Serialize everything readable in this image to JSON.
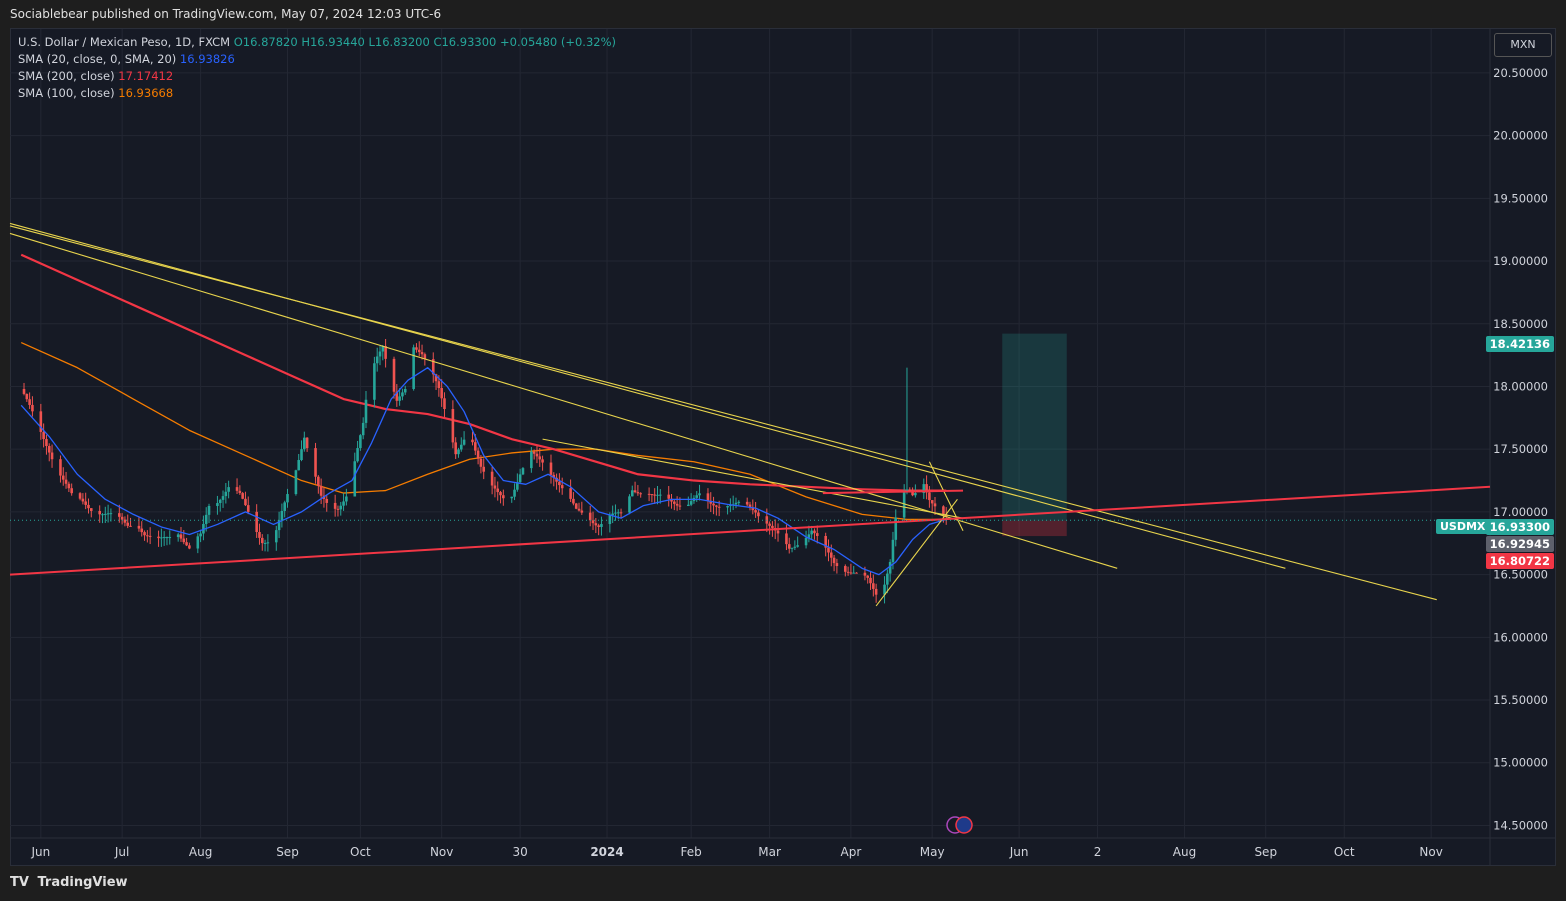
{
  "header": {
    "publisher": "Sociablebear published on TradingView.com, May 07, 2024 12:03 UTC-6"
  },
  "legend": {
    "symbol": "U.S. Dollar / Mexican Peso, 1D, FXCM",
    "open": "O16.87820",
    "high": "H16.93440",
    "low": "L16.83200",
    "close": "C16.93300",
    "change": "+0.05480 (+0.32%)",
    "sma20_label": "SMA (20, close, 0, SMA, 20)",
    "sma20_value": "16.93826",
    "sma200_label": "SMA (200, close)",
    "sma200_value": "17.17412",
    "sma100_label": "SMA (100, close)",
    "sma100_value": "16.93668"
  },
  "currency_badge": "MXN",
  "symbol_badge": "USDMXN",
  "price_labels": {
    "target": "18.42136",
    "last": "16.93300",
    "sma": "16.92945",
    "stop": "16.80722"
  },
  "footer": {
    "brand": "TradingView",
    "logo": "TV"
  },
  "colors": {
    "up": "#26a69a",
    "down": "#ef5350",
    "sma20": "#2962ff",
    "sma200": "#f23645",
    "sma100": "#f57c00",
    "trend": "#e8d44d",
    "support": "#f23645"
  },
  "chart_data": {
    "type": "candlestick",
    "title": "U.S. Dollar / Mexican Peso, 1D, FXCM",
    "ylim": [
      14.4,
      20.85
    ],
    "y_ticks": [
      "20.50000",
      "20.00000",
      "19.50000",
      "19.00000",
      "18.50000",
      "18.00000",
      "17.50000",
      "17.00000",
      "16.50000",
      "16.00000",
      "15.50000",
      "15.00000",
      "14.50000"
    ],
    "x_ticks": [
      "Jun",
      "Jul",
      "Aug",
      "Sep",
      "Oct",
      "Nov",
      "30",
      "2024",
      "Feb",
      "Mar",
      "Apr",
      "May",
      "Jun",
      "2",
      "Aug",
      "Sep",
      "Oct",
      "Nov"
    ],
    "x_tick_days": [
      7,
      36,
      64,
      95,
      121,
      150,
      178,
      209,
      239,
      267,
      296,
      325,
      356,
      384,
      415,
      444,
      472,
      503
    ],
    "x_range_days": [
      -4,
      524
    ],
    "price_path": [
      [
        0,
        17.98
      ],
      [
        5,
        17.72
      ],
      [
        10,
        17.5
      ],
      [
        14,
        17.3
      ],
      [
        18,
        17.12
      ],
      [
        22,
        17.08
      ],
      [
        26,
        17.02
      ],
      [
        30,
        16.98
      ],
      [
        34,
        16.95
      ],
      [
        38,
        16.9
      ],
      [
        41,
        16.93
      ],
      [
        44,
        16.82
      ],
      [
        48,
        16.75
      ],
      [
        52,
        16.8
      ],
      [
        56,
        16.85
      ],
      [
        60,
        16.7
      ],
      [
        64,
        16.8
      ],
      [
        67,
        17.05
      ],
      [
        70,
        17.1
      ],
      [
        74,
        17.2
      ],
      [
        78,
        17.12
      ],
      [
        82,
        16.95
      ],
      [
        86,
        16.78
      ],
      [
        90,
        16.76
      ],
      [
        94,
        17.05
      ],
      [
        98,
        17.35
      ],
      [
        101,
        17.62
      ],
      [
        104,
        17.35
      ],
      [
        107,
        17.1
      ],
      [
        110,
        17.02
      ],
      [
        113,
        17.04
      ],
      [
        116,
        17.15
      ],
      [
        119,
        17.4
      ],
      [
        122,
        17.68
      ],
      [
        124,
        18.05
      ],
      [
        127,
        18.25
      ],
      [
        129,
        18.35
      ],
      [
        132,
        18.05
      ],
      [
        134,
        17.88
      ],
      [
        137,
        17.95
      ],
      [
        140,
        18.3
      ],
      [
        143,
        18.28
      ],
      [
        146,
        18.18
      ],
      [
        149,
        17.98
      ],
      [
        152,
        17.7
      ],
      [
        155,
        17.45
      ],
      [
        158,
        17.6
      ],
      [
        161,
        17.58
      ],
      [
        164,
        17.35
      ],
      [
        167,
        17.2
      ],
      [
        170,
        17.15
      ],
      [
        174,
        17.1
      ],
      [
        178,
        17.3
      ],
      [
        182,
        17.45
      ],
      [
        186,
        17.4
      ],
      [
        190,
        17.3
      ],
      [
        194,
        17.15
      ],
      [
        198,
        17.0
      ],
      [
        202,
        16.98
      ],
      [
        206,
        16.9
      ],
      [
        210,
        16.95
      ],
      [
        214,
        16.98
      ],
      [
        218,
        17.2
      ],
      [
        222,
        17.15
      ],
      [
        226,
        17.1
      ],
      [
        230,
        17.13
      ],
      [
        234,
        17.08
      ],
      [
        238,
        17.05
      ],
      [
        242,
        17.12
      ],
      [
        246,
        17.08
      ],
      [
        250,
        17.06
      ],
      [
        254,
        17.04
      ],
      [
        258,
        17.06
      ],
      [
        262,
        17.02
      ],
      [
        266,
        16.92
      ],
      [
        270,
        16.8
      ],
      [
        274,
        16.7
      ],
      [
        278,
        16.78
      ],
      [
        282,
        16.85
      ],
      [
        286,
        16.72
      ],
      [
        290,
        16.6
      ],
      [
        294,
        16.55
      ],
      [
        298,
        16.5
      ],
      [
        302,
        16.45
      ],
      [
        305,
        16.35
      ],
      [
        308,
        16.45
      ],
      [
        310,
        16.62
      ],
      [
        312,
        16.95
      ],
      [
        314,
        17.1
      ],
      [
        316,
        17.15
      ],
      [
        318,
        17.12
      ],
      [
        320,
        17.18
      ],
      [
        322,
        17.25
      ],
      [
        324,
        17.12
      ],
      [
        326,
        17.05
      ],
      [
        328,
        16.98
      ],
      [
        330,
        16.93
      ]
    ],
    "spike": {
      "day": 316,
      "high": 18.15
    },
    "sma20": [
      [
        0,
        17.85
      ],
      [
        10,
        17.6
      ],
      [
        20,
        17.3
      ],
      [
        30,
        17.1
      ],
      [
        40,
        16.98
      ],
      [
        50,
        16.88
      ],
      [
        60,
        16.82
      ],
      [
        70,
        16.9
      ],
      [
        80,
        17.0
      ],
      [
        90,
        16.9
      ],
      [
        100,
        17.0
      ],
      [
        110,
        17.15
      ],
      [
        118,
        17.25
      ],
      [
        125,
        17.55
      ],
      [
        132,
        17.9
      ],
      [
        138,
        18.05
      ],
      [
        145,
        18.15
      ],
      [
        152,
        18.0
      ],
      [
        158,
        17.8
      ],
      [
        165,
        17.45
      ],
      [
        172,
        17.25
      ],
      [
        180,
        17.22
      ],
      [
        188,
        17.3
      ],
      [
        196,
        17.2
      ],
      [
        206,
        17.0
      ],
      [
        214,
        16.95
      ],
      [
        222,
        17.05
      ],
      [
        232,
        17.1
      ],
      [
        242,
        17.1
      ],
      [
        252,
        17.06
      ],
      [
        262,
        17.03
      ],
      [
        270,
        16.95
      ],
      [
        280,
        16.8
      ],
      [
        290,
        16.7
      ],
      [
        300,
        16.55
      ],
      [
        306,
        16.5
      ],
      [
        312,
        16.6
      ],
      [
        318,
        16.78
      ],
      [
        324,
        16.9
      ],
      [
        330,
        16.94
      ]
    ],
    "sma200": [
      [
        0,
        19.05
      ],
      [
        20,
        18.85
      ],
      [
        40,
        18.65
      ],
      [
        60,
        18.45
      ],
      [
        80,
        18.25
      ],
      [
        100,
        18.05
      ],
      [
        115,
        17.9
      ],
      [
        130,
        17.82
      ],
      [
        145,
        17.78
      ],
      [
        160,
        17.7
      ],
      [
        175,
        17.58
      ],
      [
        190,
        17.5
      ],
      [
        205,
        17.4
      ],
      [
        220,
        17.3
      ],
      [
        240,
        17.25
      ],
      [
        260,
        17.22
      ],
      [
        280,
        17.2
      ],
      [
        300,
        17.18
      ],
      [
        316,
        17.17
      ],
      [
        330,
        17.17
      ]
    ],
    "sma100": [
      [
        0,
        18.35
      ],
      [
        20,
        18.15
      ],
      [
        40,
        17.9
      ],
      [
        60,
        17.65
      ],
      [
        80,
        17.45
      ],
      [
        100,
        17.25
      ],
      [
        115,
        17.15
      ],
      [
        130,
        17.17
      ],
      [
        145,
        17.3
      ],
      [
        160,
        17.42
      ],
      [
        175,
        17.47
      ],
      [
        190,
        17.5
      ],
      [
        205,
        17.5
      ],
      [
        220,
        17.45
      ],
      [
        240,
        17.4
      ],
      [
        260,
        17.3
      ],
      [
        280,
        17.12
      ],
      [
        300,
        16.98
      ],
      [
        316,
        16.94
      ],
      [
        330,
        16.94
      ]
    ],
    "trend_lines": [
      {
        "name": "upper-downtrend-1",
        "from": [
          -4,
          19.3
        ],
        "to": [
          451,
          16.55
        ]
      },
      {
        "name": "upper-downtrend-2",
        "from": [
          -4,
          19.22
        ],
        "to": [
          391,
          16.55
        ]
      },
      {
        "name": "upper-downtrend-3",
        "from": [
          -4,
          19.28
        ],
        "to": [
          505,
          16.3
        ]
      },
      {
        "name": "apr-support",
        "from": [
          305,
          16.25
        ],
        "to": [
          334,
          17.1
        ]
      },
      {
        "name": "apr-cap",
        "from": [
          324,
          17.4
        ],
        "to": [
          336,
          16.85
        ]
      },
      {
        "name": "mid-resistance",
        "from": [
          186,
          17.58
        ],
        "to": [
          336,
          16.95
        ]
      }
    ],
    "support_line": {
      "from": [
        -4,
        16.5
      ],
      "to": [
        524,
        17.2
      ]
    },
    "sma200_ext": {
      "from": [
        286,
        17.15
      ],
      "to": [
        336,
        17.17
      ]
    },
    "position": {
      "from_day": 350,
      "to_day": 373,
      "entry": 16.93,
      "target": 18.42136,
      "stop": 16.80722
    },
    "last_price": 16.933
  }
}
